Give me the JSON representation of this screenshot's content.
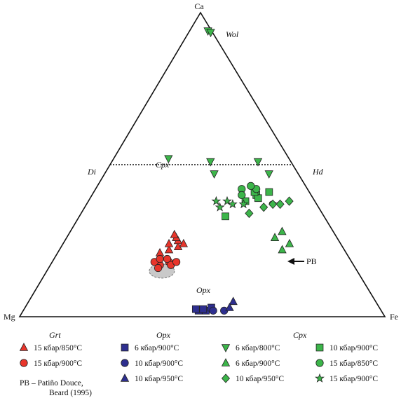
{
  "colors": {
    "grt": "#e8352b",
    "opx": "#2e2f8f",
    "cpx": "#3cb54a",
    "pb_fill": "#c9c9c9"
  },
  "chart_data": {
    "type": "ternary",
    "apices": {
      "top": "Ca",
      "left": "Mg",
      "right": "Fe"
    },
    "reference_labels": {
      "di": "Di",
      "hd": "Hd",
      "wol": "Wol",
      "cpx": "Cpx",
      "grt": "Grt",
      "opx": "Opx",
      "pb": "PB"
    },
    "series": [
      {
        "group": "grt",
        "name": "15 кбар/850°C",
        "marker": "triangle-up",
        "color": "#e8352b",
        "points": [
          [
            0.28,
            0.21
          ],
          [
            0.3,
            0.22
          ],
          [
            0.32,
            0.23
          ],
          [
            0.29,
            0.24
          ],
          [
            0.31,
            0.25
          ],
          [
            0.3,
            0.26
          ],
          [
            0.33,
            0.24
          ],
          [
            0.29,
            0.27
          ]
        ]
      },
      {
        "group": "grt",
        "name": "15 кбар/900°C",
        "marker": "circle",
        "color": "#e8352b",
        "points": [
          [
            0.3,
            0.17
          ],
          [
            0.32,
            0.18
          ],
          [
            0.28,
            0.18
          ],
          [
            0.31,
            0.19
          ],
          [
            0.33,
            0.17
          ],
          [
            0.29,
            0.19
          ],
          [
            0.3,
            0.16
          ],
          [
            0.34,
            0.18
          ]
        ]
      },
      {
        "group": "opx",
        "name": "6 кбар/900°C",
        "marker": "square",
        "color": "#2e2f8f",
        "points": [
          [
            0.48,
            0.02
          ],
          [
            0.5,
            0.02
          ],
          [
            0.47,
            0.025
          ],
          [
            0.51,
            0.03
          ],
          [
            0.49,
            0.025
          ]
        ]
      },
      {
        "group": "opx",
        "name": "10 кбар/900°C",
        "marker": "circle",
        "color": "#2e2f8f",
        "points": [
          [
            0.52,
            0.02
          ],
          [
            0.55,
            0.02
          ]
        ]
      },
      {
        "group": "opx",
        "name": "10 кбар/950°C",
        "marker": "triangle-up",
        "color": "#2e2f8f",
        "points": [
          [
            0.56,
            0.05
          ],
          [
            0.56,
            0.03
          ]
        ]
      },
      {
        "group": "cpx",
        "name": "6 кбар/800°C",
        "marker": "triangle-down",
        "color": "#3cb54a",
        "points": [
          [
            0.05,
            0.94
          ],
          [
            0.06,
            0.935
          ],
          [
            0.27,
            0.51
          ],
          [
            0.15,
            0.52
          ],
          [
            0.45,
            0.47
          ],
          [
            0.4,
            0.51
          ],
          [
            0.3,
            0.47
          ]
        ]
      },
      {
        "group": "cpx",
        "name": "6 кбар/900°C",
        "marker": "triangle-up",
        "color": "#3cb54a",
        "points": [
          [
            0.58,
            0.28
          ],
          [
            0.57,
            0.26
          ],
          [
            0.62,
            0.24
          ],
          [
            0.61,
            0.22
          ]
        ]
      },
      {
        "group": "cpx",
        "name": "10 кбар/950°C",
        "marker": "diamond",
        "color": "#3cb54a",
        "points": [
          [
            0.55,
            0.38
          ],
          [
            0.51,
            0.37
          ],
          [
            0.46,
            0.34
          ],
          [
            0.49,
            0.36
          ],
          [
            0.53,
            0.37
          ]
        ]
      },
      {
        "group": "cpx",
        "name": "10 кбар/900°C",
        "marker": "square",
        "color": "#3cb54a",
        "points": [
          [
            0.48,
            0.41
          ],
          [
            0.45,
            0.4
          ],
          [
            0.4,
            0.33
          ],
          [
            0.43,
            0.38
          ],
          [
            0.46,
            0.39
          ],
          [
            0.44,
            0.41
          ]
        ]
      },
      {
        "group": "cpx",
        "name": "15 кбар/850°C",
        "marker": "circle",
        "color": "#3cb54a",
        "points": [
          [
            0.44,
            0.42
          ],
          [
            0.4,
            0.42
          ],
          [
            0.41,
            0.4
          ],
          [
            0.42,
            0.43
          ]
        ]
      },
      {
        "group": "cpx",
        "name": "15 кбар/900°C",
        "marker": "star",
        "color": "#3cb54a",
        "points": [
          [
            0.38,
            0.38
          ],
          [
            0.37,
            0.36
          ],
          [
            0.35,
            0.38
          ],
          [
            0.43,
            0.37
          ],
          [
            0.4,
            0.37
          ]
        ]
      }
    ],
    "legend": {
      "group_titles": {
        "grt": "Grt",
        "opx": "Opx",
        "cpx": "Cpx"
      },
      "pb_note_line1": "PB – Patiño Douce,",
      "pb_note_line2": "Beard (1995)"
    }
  }
}
